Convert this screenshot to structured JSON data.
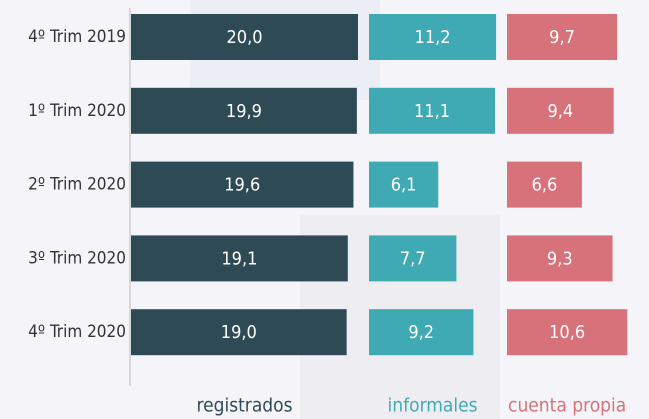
{
  "chart_data": {
    "type": "bar",
    "categories": [
      "4º Trim 2019",
      "1º Trim 2020",
      "2º Trim 2020",
      "3º Trim 2020",
      "4º Trim 2020"
    ],
    "series": [
      {
        "name": "registrados",
        "color": "#2e4a55",
        "values": [
          20.0,
          19.9,
          19.6,
          19.1,
          19.0
        ],
        "value_labels": [
          "20,0",
          "19,9",
          "19,6",
          "19,1",
          "19,0"
        ]
      },
      {
        "name": "informales",
        "color": "#3fa9b4",
        "values": [
          11.2,
          11.1,
          6.1,
          7.7,
          9.2
        ],
        "value_labels": [
          "11,2",
          "11,1",
          "6,1",
          "7,7",
          "9,2"
        ]
      },
      {
        "name": "cuenta propia",
        "color": "#d8727a",
        "values": [
          9.7,
          9.4,
          6.6,
          9.3,
          10.6
        ],
        "value_labels": [
          "9,7",
          "9,4",
          "6,6",
          "9,3",
          "10,6"
        ]
      }
    ],
    "xlim": [
      0,
      20
    ]
  }
}
